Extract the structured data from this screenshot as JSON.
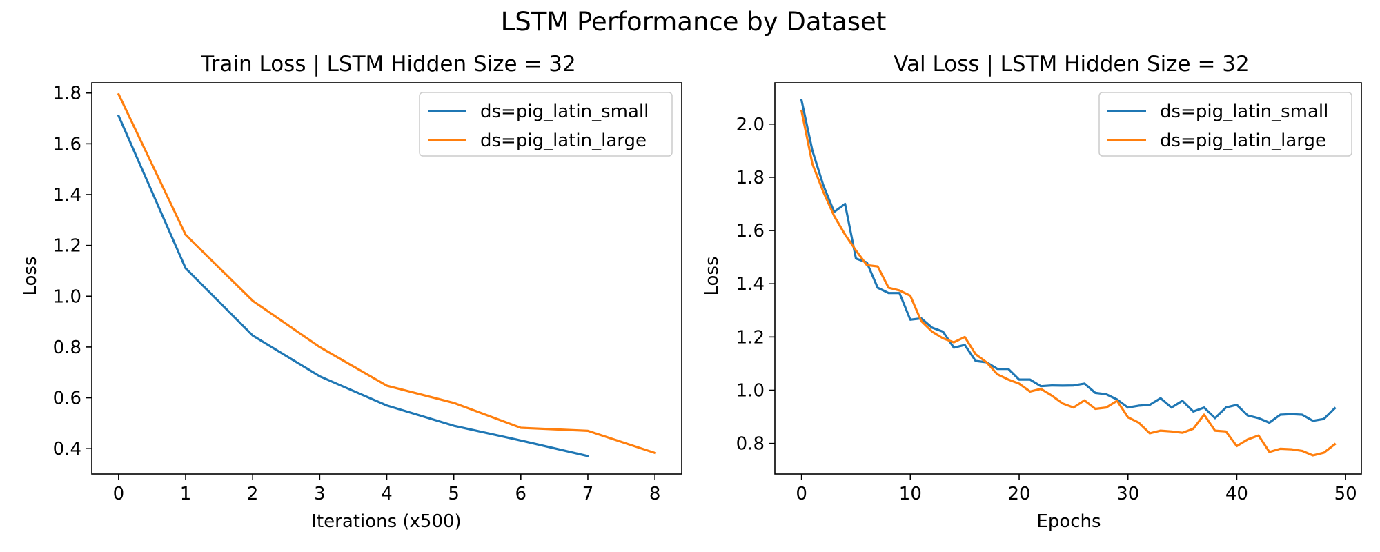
{
  "figure": {
    "title": "LSTM Performance by Dataset"
  },
  "colors": {
    "series1": "#1f77b4",
    "series2": "#ff7f0e"
  },
  "chart_data": [
    {
      "type": "line",
      "title": "Train Loss | LSTM Hidden Size = 32",
      "xlabel": "Iterations (x500)",
      "ylabel": "Loss",
      "xlim": [
        -0.4,
        8.4
      ],
      "ylim": [
        0.3,
        1.84
      ],
      "xticks": [
        "0",
        "1",
        "2",
        "3",
        "4",
        "5",
        "6",
        "7",
        "8"
      ],
      "yticks": [
        "0.4",
        "0.6",
        "0.8",
        "1.0",
        "1.2",
        "1.4",
        "1.6",
        "1.8"
      ],
      "grid": false,
      "legend_position": "top-right",
      "series": [
        {
          "name": "ds=pig_latin_small",
          "color": "#1f77b4",
          "x": [
            0,
            1,
            2,
            3,
            4,
            5,
            6,
            7
          ],
          "y": [
            1.71,
            1.11,
            0.845,
            0.685,
            0.57,
            0.49,
            0.432,
            0.371
          ]
        },
        {
          "name": "ds=pig_latin_large",
          "color": "#ff7f0e",
          "x": [
            0,
            1,
            2,
            3,
            4,
            5,
            6,
            7,
            8
          ],
          "y": [
            1.795,
            1.242,
            0.982,
            0.8,
            0.648,
            0.58,
            0.482,
            0.47,
            0.383
          ]
        }
      ]
    },
    {
      "type": "line",
      "title": "Val Loss | LSTM Hidden Size = 32",
      "xlabel": "Epochs",
      "ylabel": "Loss",
      "xlim": [
        -2.45,
        51.45
      ],
      "ylim": [
        0.685,
        2.155
      ],
      "xticks": [
        "0",
        "10",
        "20",
        "30",
        "40",
        "50"
      ],
      "yticks": [
        "0.8",
        "1.0",
        "1.2",
        "1.4",
        "1.6",
        "1.8",
        "2.0"
      ],
      "grid": false,
      "legend_position": "top-right",
      "series": [
        {
          "name": "ds=pig_latin_small",
          "color": "#1f77b4",
          "x": [
            0,
            1,
            2,
            3,
            4,
            5,
            6,
            7,
            8,
            9,
            10,
            11,
            12,
            13,
            14,
            15,
            16,
            17,
            18,
            19,
            20,
            21,
            22,
            23,
            24,
            25,
            26,
            27,
            28,
            29,
            30,
            31,
            32,
            33,
            34,
            35,
            36,
            37,
            38,
            39,
            40,
            41,
            42,
            43,
            44,
            45,
            46,
            47,
            48,
            49
          ],
          "y": [
            2.09,
            1.9,
            1.77,
            1.67,
            1.7,
            1.495,
            1.48,
            1.385,
            1.365,
            1.365,
            1.265,
            1.27,
            1.235,
            1.22,
            1.16,
            1.17,
            1.11,
            1.105,
            1.08,
            1.08,
            1.04,
            1.04,
            1.015,
            1.018,
            1.017,
            1.018,
            1.025,
            0.99,
            0.985,
            0.965,
            0.935,
            0.942,
            0.945,
            0.97,
            0.935,
            0.96,
            0.92,
            0.935,
            0.895,
            0.935,
            0.945,
            0.905,
            0.895,
            0.878,
            0.908,
            0.91,
            0.908,
            0.885,
            0.892,
            0.932
          ]
        },
        {
          "name": "ds=pig_latin_large",
          "color": "#ff7f0e",
          "x": [
            0,
            1,
            2,
            3,
            4,
            5,
            6,
            7,
            8,
            9,
            10,
            11,
            12,
            13,
            14,
            15,
            16,
            17,
            18,
            19,
            20,
            21,
            22,
            23,
            24,
            25,
            26,
            27,
            28,
            29,
            30,
            31,
            32,
            33,
            34,
            35,
            36,
            37,
            38,
            39,
            40,
            41,
            42,
            43,
            44,
            45,
            46,
            47,
            48,
            49
          ],
          "y": [
            2.05,
            1.85,
            1.745,
            1.655,
            1.585,
            1.525,
            1.47,
            1.465,
            1.385,
            1.375,
            1.355,
            1.26,
            1.22,
            1.195,
            1.18,
            1.2,
            1.135,
            1.105,
            1.06,
            1.04,
            1.025,
            0.995,
            1.005,
            0.98,
            0.95,
            0.935,
            0.962,
            0.93,
            0.935,
            0.96,
            0.898,
            0.878,
            0.838,
            0.848,
            0.845,
            0.84,
            0.855,
            0.908,
            0.848,
            0.845,
            0.79,
            0.815,
            0.83,
            0.768,
            0.78,
            0.778,
            0.772,
            0.755,
            0.765,
            0.797
          ]
        }
      ]
    }
  ]
}
